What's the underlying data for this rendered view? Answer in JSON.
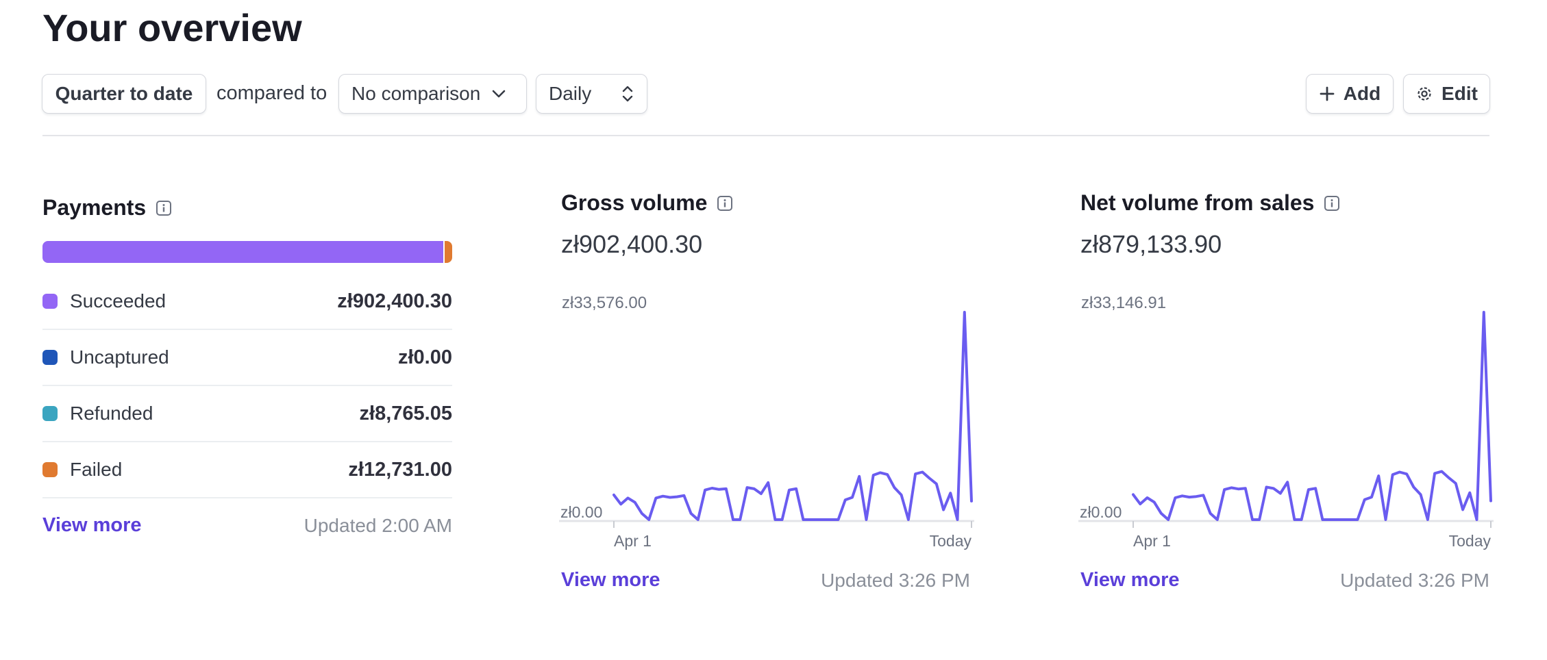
{
  "page": {
    "title": "Your overview"
  },
  "toolbar": {
    "range_label": "Quarter to date",
    "compared_to": "compared to",
    "comparison_value": "No comparison",
    "interval_value": "Daily",
    "add_label": "Add",
    "edit_label": "Edit"
  },
  "payments": {
    "title": "Payments",
    "bar": [
      {
        "name": "Succeeded",
        "share": 0.9777,
        "color": "#9366f5"
      },
      {
        "name": "Failed",
        "share": 0.0138,
        "color": "#e07a30"
      }
    ],
    "rows": [
      {
        "label": "Succeeded",
        "value": "zł902,400.30",
        "color": "#9366f5"
      },
      {
        "label": "Uncaptured",
        "value": "zł0.00",
        "color": "#1f56b8"
      },
      {
        "label": "Refunded",
        "value": "zł8,765.05",
        "color": "#3ba5c0"
      },
      {
        "label": "Failed",
        "value": "zł12,731.00",
        "color": "#e07a30"
      }
    ],
    "view_more": "View more",
    "updated": "Updated 2:00 AM"
  },
  "gross": {
    "title": "Gross volume",
    "amount": "zł902,400.30",
    "view_more": "View more",
    "updated": "Updated 3:26 PM",
    "chart_data": {
      "type": "line",
      "x_start_label": "Apr 1",
      "x_end_label": "Today",
      "ylim": [
        0,
        33576
      ],
      "y_max_label": "zł33,576.00",
      "y_min_label": "zł0.00",
      "color": "#6a5cf0",
      "values": [
        4000,
        2500,
        3500,
        2800,
        1000,
        0,
        3500,
        3800,
        3600,
        3700,
        3900,
        1000,
        0,
        4800,
        5100,
        4900,
        5000,
        0,
        0,
        5200,
        5000,
        4200,
        6000,
        0,
        0,
        4800,
        5000,
        0,
        0,
        0,
        0,
        0,
        0,
        3200,
        3600,
        7000,
        0,
        7200,
        7600,
        7300,
        5200,
        4000,
        0,
        7400,
        7700,
        6700,
        5800,
        1600,
        4300,
        0,
        33576,
        3000
      ]
    }
  },
  "net": {
    "title": "Net volume from sales",
    "amount": "zł879,133.90",
    "view_more": "View more",
    "updated": "Updated 3:26 PM",
    "chart_data": {
      "type": "line",
      "x_start_label": "Apr 1",
      "x_end_label": "Today",
      "ylim": [
        0,
        33146.91
      ],
      "y_max_label": "zł33,146.91",
      "y_min_label": "zł0.00",
      "color": "#6a5cf0",
      "values": [
        4000,
        2500,
        3500,
        2800,
        1000,
        0,
        3500,
        3800,
        3600,
        3700,
        3900,
        1000,
        0,
        4800,
        5100,
        4900,
        5000,
        0,
        0,
        5200,
        5000,
        4200,
        6000,
        0,
        0,
        4800,
        5000,
        0,
        0,
        0,
        0,
        0,
        0,
        3200,
        3600,
        7000,
        0,
        7200,
        7600,
        7300,
        5200,
        4000,
        0,
        7400,
        7700,
        6700,
        5800,
        1600,
        4300,
        0,
        33146.91,
        3000
      ]
    }
  }
}
